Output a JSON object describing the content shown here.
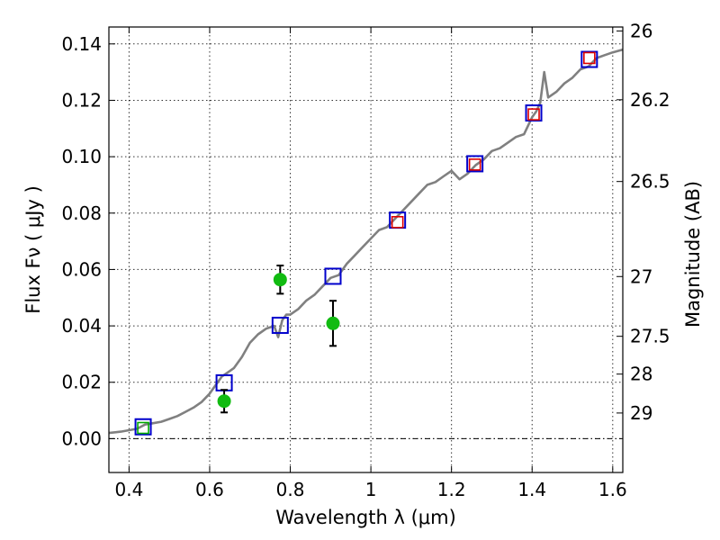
{
  "chart_data": {
    "type": "scatter",
    "xlabel": "Wavelength  λ (μm)",
    "ylabel": "Flux  Fν  ( μJy )",
    "ylabel_right": "Magnitude (AB)",
    "xlim": [
      0.35,
      1.625
    ],
    "ylim": [
      -0.012,
      0.146
    ],
    "grid": true,
    "x_ticks": [
      0.4,
      0.6,
      0.8,
      1.0,
      1.2,
      1.4,
      1.6
    ],
    "x_tick_labels": [
      "0.4",
      "0.6",
      "0.8",
      "1",
      "1.2",
      "1.4",
      "1.6"
    ],
    "y_ticks": [
      0.0,
      0.02,
      0.04,
      0.06,
      0.08,
      0.1,
      0.12,
      0.14
    ],
    "y_tick_labels": [
      "0.00",
      "0.02",
      "0.04",
      "0.06",
      "0.08",
      "0.10",
      "0.12",
      "0.14"
    ],
    "right_ticks": [
      {
        "label": "26",
        "flux": 0.1446
      },
      {
        "label": "26.2",
        "flux": 0.1202
      },
      {
        "label": "26.5",
        "flux": 0.0912
      },
      {
        "label": "27",
        "flux": 0.0575
      },
      {
        "label": "27.5",
        "flux": 0.0363
      },
      {
        "label": "28",
        "flux": 0.0229
      },
      {
        "label": "29",
        "flux": 0.0091
      }
    ],
    "series": [
      {
        "name": "model spectrum",
        "kind": "line",
        "color": "#808080",
        "x": [
          0.35,
          0.38,
          0.4,
          0.42,
          0.44,
          0.46,
          0.48,
          0.5,
          0.52,
          0.54,
          0.56,
          0.58,
          0.6,
          0.61,
          0.62,
          0.63,
          0.64,
          0.65,
          0.66,
          0.68,
          0.7,
          0.72,
          0.74,
          0.76,
          0.77,
          0.78,
          0.79,
          0.8,
          0.82,
          0.84,
          0.86,
          0.88,
          0.9,
          0.92,
          0.94,
          0.96,
          0.98,
          1.0,
          1.02,
          1.04,
          1.06,
          1.08,
          1.1,
          1.12,
          1.14,
          1.16,
          1.18,
          1.2,
          1.22,
          1.24,
          1.26,
          1.28,
          1.3,
          1.32,
          1.34,
          1.36,
          1.38,
          1.4,
          1.41,
          1.42,
          1.43,
          1.44,
          1.46,
          1.48,
          1.5,
          1.52,
          1.54,
          1.56,
          1.58,
          1.6,
          1.625
        ],
        "y": [
          0.002,
          0.0025,
          0.003,
          0.0035,
          0.005,
          0.0055,
          0.006,
          0.007,
          0.008,
          0.0095,
          0.011,
          0.013,
          0.016,
          0.018,
          0.02,
          0.022,
          0.023,
          0.024,
          0.025,
          0.029,
          0.034,
          0.037,
          0.039,
          0.04,
          0.036,
          0.042,
          0.044,
          0.044,
          0.046,
          0.049,
          0.051,
          0.054,
          0.057,
          0.058,
          0.062,
          0.065,
          0.068,
          0.071,
          0.074,
          0.075,
          0.078,
          0.081,
          0.084,
          0.087,
          0.09,
          0.091,
          0.093,
          0.095,
          0.092,
          0.094,
          0.097,
          0.099,
          0.102,
          0.103,
          0.105,
          0.107,
          0.108,
          0.114,
          0.116,
          0.119,
          0.13,
          0.121,
          0.123,
          0.126,
          0.128,
          0.131,
          0.132,
          0.135,
          0.136,
          0.137,
          0.138
        ]
      },
      {
        "name": "model photometry",
        "kind": "open-square",
        "color": "#0000cc",
        "x": [
          0.435,
          0.636,
          0.775,
          0.906,
          1.066,
          1.258,
          1.404,
          1.542
        ],
        "y": [
          0.0042,
          0.0198,
          0.0402,
          0.0576,
          0.0775,
          0.0975,
          0.1155,
          0.1345
        ]
      },
      {
        "name": "red squares",
        "kind": "open-square",
        "color": "#dd0000",
        "x": [
          1.066,
          1.258,
          1.404,
          1.542
        ],
        "y": [
          0.0768,
          0.0972,
          0.115,
          0.135
        ]
      },
      {
        "name": "green square",
        "kind": "open-square",
        "color": "#00aa00",
        "x": [
          0.435
        ],
        "y": [
          0.0038
        ]
      },
      {
        "name": "observed photometry",
        "kind": "filled-circle-errorbar",
        "color": "#11bb11",
        "x": [
          0.636,
          0.775,
          0.906
        ],
        "y": [
          0.0133,
          0.0564,
          0.0409
        ],
        "yerr": [
          0.004,
          0.005,
          0.008
        ]
      }
    ]
  }
}
